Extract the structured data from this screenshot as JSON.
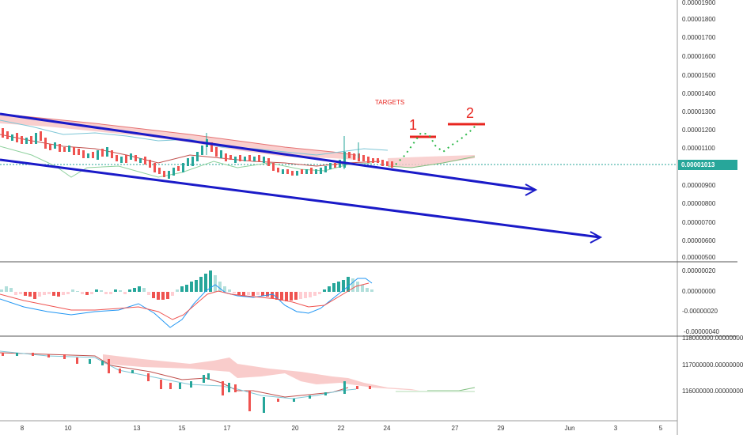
{
  "price_axis": [
    "0.00001900",
    "0.00001800",
    "0.00001700",
    "0.00001600",
    "0.00001500",
    "0.00001400",
    "0.00001300",
    "0.00001200",
    "0.00001100",
    "0.00000900",
    "0.00000800",
    "0.00000700",
    "0.00000600",
    "0.00000500"
  ],
  "current_price": "0.00001013",
  "macd_axis": [
    "0.00000020",
    "0.00000000",
    "-0.00000020",
    "-0.00000040"
  ],
  "volume_axis": [
    "118000000.00000000",
    "117000000.00000000",
    "116000000.00000000"
  ],
  "date_axis": [
    "8",
    "10",
    "13",
    "15",
    "17",
    "20",
    "22",
    "24",
    "27",
    "29",
    "Jun",
    "3",
    "5"
  ],
  "annotations": {
    "targets_label": "TARGETS",
    "target_1": "1",
    "target_2": "2"
  },
  "colors": {
    "up_candle": "#26a69a",
    "down_candle": "#ef5350",
    "trend_arrow": "#1a1ac8",
    "target_red": "#e8251f",
    "projection_dots": "#2db84a"
  }
}
